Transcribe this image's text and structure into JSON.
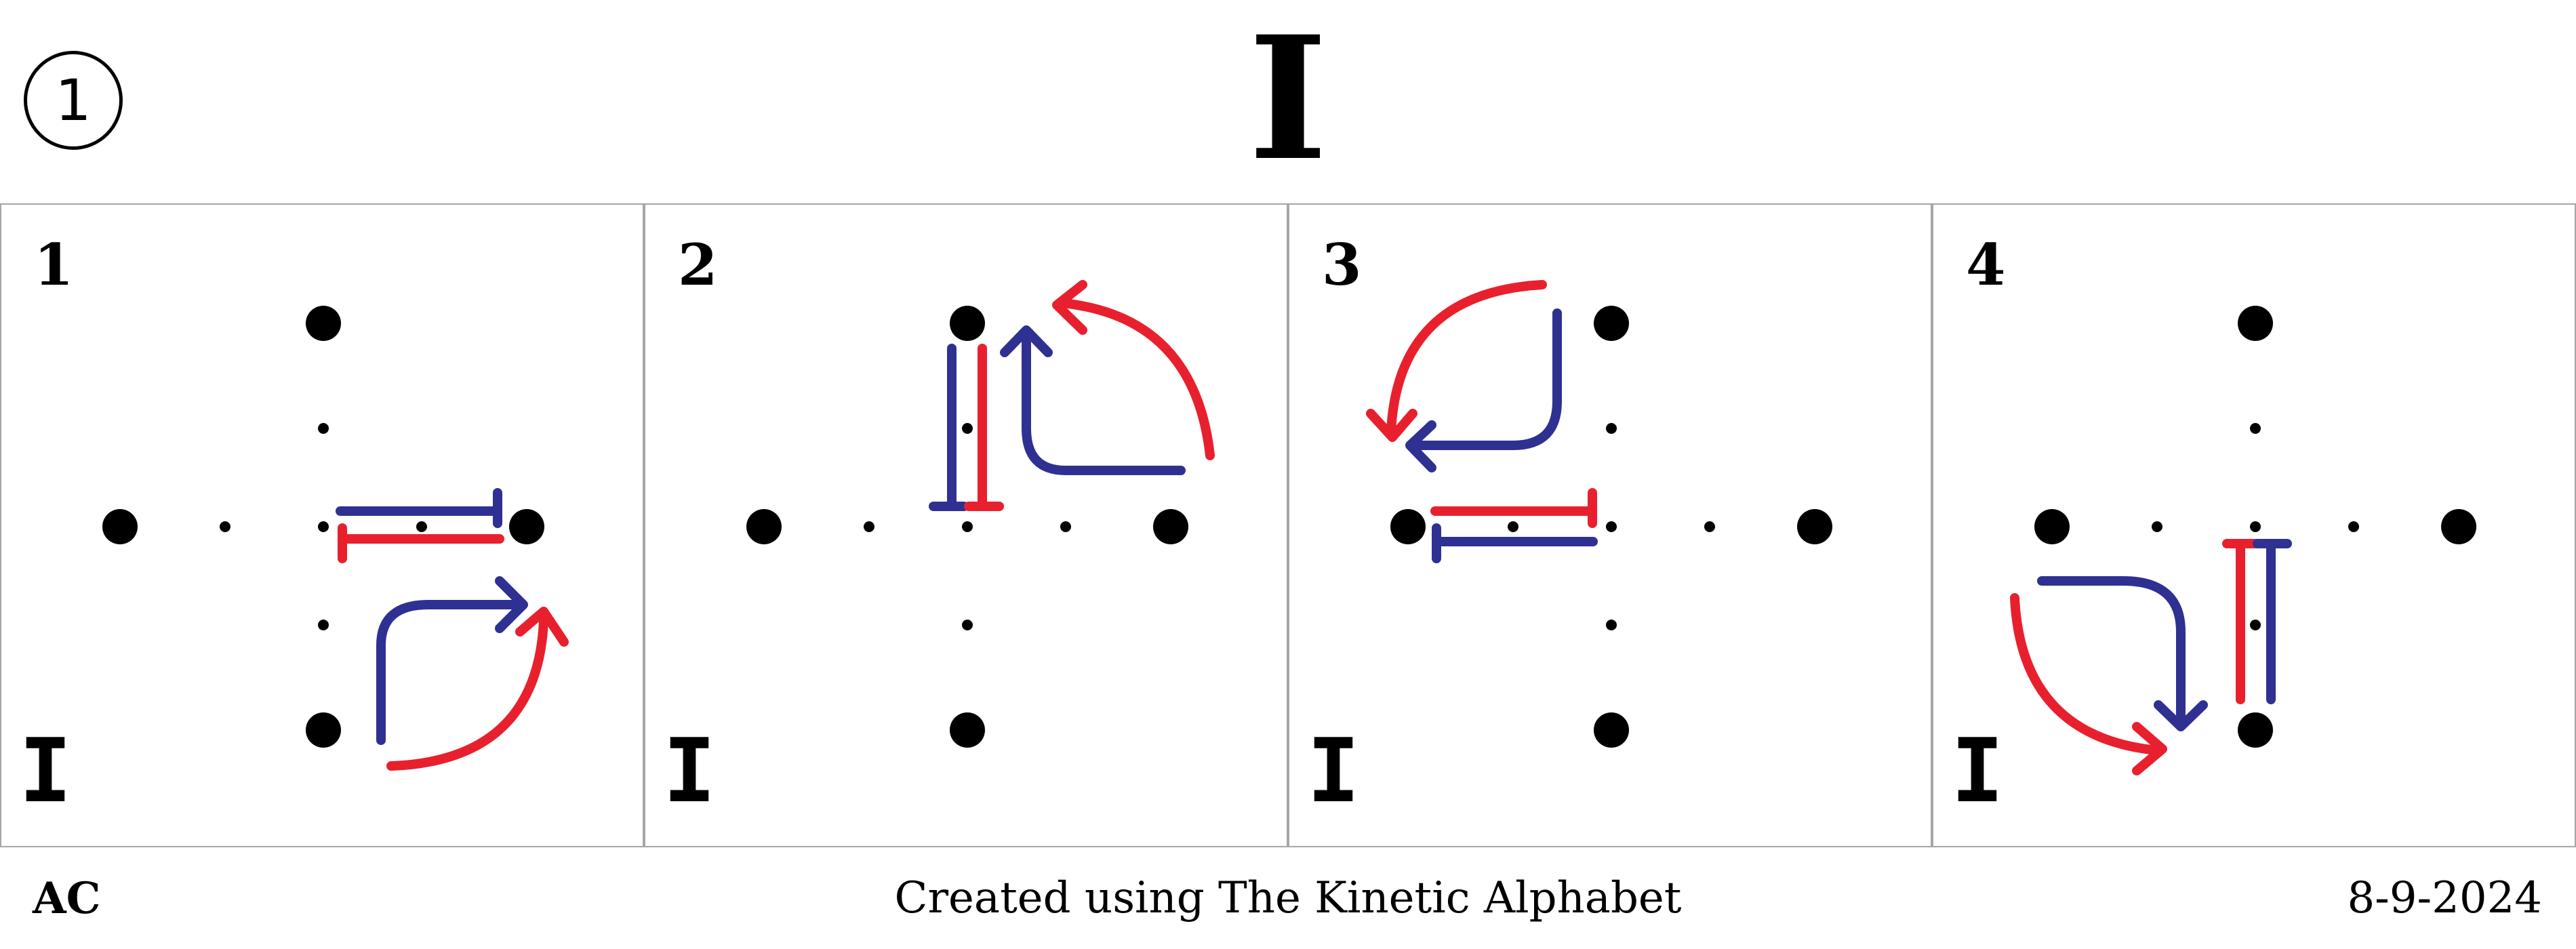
{
  "header": {
    "badge": "1",
    "title": "I"
  },
  "panels": [
    {
      "number": "1",
      "letter": "I"
    },
    {
      "number": "2",
      "letter": "I"
    },
    {
      "number": "3",
      "letter": "I"
    },
    {
      "number": "4",
      "letter": "I"
    }
  ],
  "footer": {
    "author": "AC",
    "credit": "Created using The Kinetic Alphabet",
    "date": "8-9-2024"
  },
  "colors": {
    "red": "#e8202e",
    "blue": "#2e3192",
    "border": "#a6a6a6"
  }
}
